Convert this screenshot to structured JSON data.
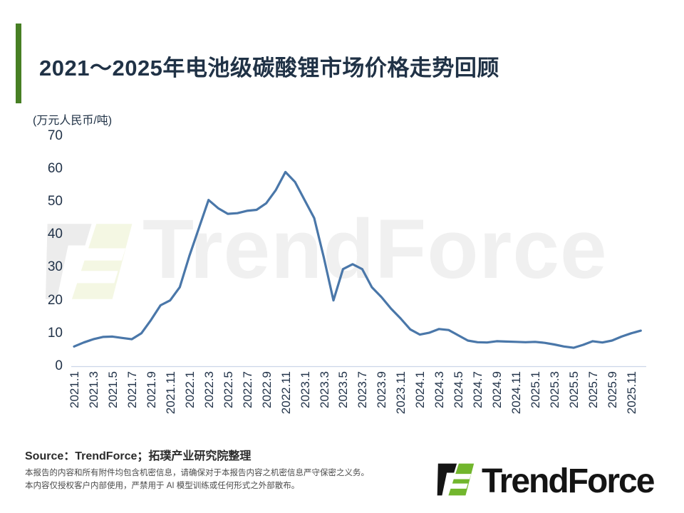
{
  "header": {
    "title": "2021～2025年电池级碳酸锂市场价格走势回顾"
  },
  "chart_data": {
    "type": "line",
    "title": "2021～2025年电池级碳酸锂市场价格走势回顾",
    "unit_label": "(万元人民币/吨)",
    "ylabel": "万元人民币/吨",
    "ylim": [
      0,
      70
    ],
    "yticks": [
      0,
      10,
      20,
      30,
      40,
      50,
      60,
      70
    ],
    "grid": false,
    "legend_position": "none",
    "line_color": "#4a77a9",
    "x_tick_labels": [
      "2021.1",
      "2021.3",
      "2021.5",
      "2021.7",
      "2021.9",
      "2021.11",
      "2022.1",
      "2022.3",
      "2022.5",
      "2022.7",
      "2022.9",
      "2022.11",
      "2023.1",
      "2023.3",
      "2023.5",
      "2023.7",
      "2023.9",
      "2023.11",
      "2024.1",
      "2024.3",
      "2024.5",
      "2024.7",
      "2024.9",
      "2024.11",
      "2025.1",
      "2025.3",
      "2025.5",
      "2025.7",
      "2025.9",
      "2025.11"
    ],
    "x": [
      "2021.1",
      "2021.2",
      "2021.3",
      "2021.4",
      "2021.5",
      "2021.6",
      "2021.7",
      "2021.8",
      "2021.9",
      "2021.10",
      "2021.11",
      "2021.12",
      "2022.1",
      "2022.2",
      "2022.3",
      "2022.4",
      "2022.5",
      "2022.6",
      "2022.7",
      "2022.8",
      "2022.9",
      "2022.10",
      "2022.11",
      "2022.12",
      "2023.1",
      "2023.2",
      "2023.3",
      "2023.4",
      "2023.5",
      "2023.6",
      "2023.7",
      "2023.8",
      "2023.9",
      "2023.10",
      "2023.11",
      "2023.12",
      "2024.1",
      "2024.2",
      "2024.3",
      "2024.4",
      "2024.5",
      "2024.6",
      "2024.7",
      "2024.8",
      "2024.9",
      "2024.10",
      "2024.11",
      "2024.12",
      "2025.1",
      "2025.2",
      "2025.3",
      "2025.4",
      "2025.5",
      "2025.6",
      "2025.7",
      "2025.8",
      "2025.9",
      "2025.10",
      "2025.11",
      "2025.12"
    ],
    "series": [
      {
        "name": "电池级碳酸锂市场价格",
        "values": [
          6.0,
          7.2,
          8.2,
          8.9,
          9.0,
          8.6,
          8.2,
          10.0,
          14.0,
          18.5,
          20.0,
          24.0,
          33.5,
          42.0,
          50.5,
          48.0,
          46.3,
          46.5,
          47.2,
          47.5,
          49.5,
          53.5,
          59.0,
          56.0,
          50.5,
          45.0,
          33.0,
          20.0,
          29.5,
          31.0,
          29.5,
          24.0,
          21.0,
          17.5,
          14.5,
          11.2,
          9.6,
          10.2,
          11.3,
          11.0,
          9.4,
          7.8,
          7.3,
          7.2,
          7.6,
          7.5,
          7.4,
          7.3,
          7.4,
          7.1,
          6.6,
          6.0,
          5.6,
          6.5,
          7.6,
          7.2,
          7.8,
          9.0,
          10.0,
          10.8
        ]
      }
    ]
  },
  "watermark": {
    "text": "TrendForce"
  },
  "footer": {
    "source": "Source：TrendForce；拓璞产业研究院整理",
    "disclaimer_line1": "本报告的内容和所有附件均包含机密信息，请确保对于本报告内容之机密信息严守保密之义务。",
    "disclaimer_line2": "本内容仅授权客户内部使用，严禁用于 AI 模型训练或任何形式之外部散布。",
    "logo_text": "TrendForce"
  }
}
